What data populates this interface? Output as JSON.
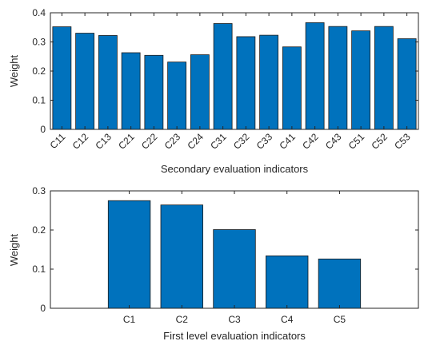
{
  "chart_data": [
    {
      "type": "bar",
      "title": "",
      "categories": [
        "C11",
        "C12",
        "C13",
        "C21",
        "C22",
        "C23",
        "C24",
        "C31",
        "C32",
        "C33",
        "C41",
        "C42",
        "C43",
        "C51",
        "C52",
        "C53"
      ],
      "values": [
        0.352,
        0.33,
        0.322,
        0.263,
        0.254,
        0.231,
        0.256,
        0.363,
        0.318,
        0.323,
        0.283,
        0.366,
        0.353,
        0.338,
        0.353,
        0.311
      ],
      "xlabel": "Secondary evaluation indicators",
      "ylabel": "Weight",
      "ylim": [
        0,
        0.4
      ],
      "yticks": [
        "0",
        "0.1",
        "0.2",
        "0.3",
        "0.4"
      ],
      "xtick_rotation_deg": -45,
      "bar_color": "#0072BD",
      "grid": false,
      "box": true
    },
    {
      "type": "bar",
      "title": "",
      "categories": [
        "C1",
        "C2",
        "C3",
        "C4",
        "C5"
      ],
      "values": [
        0.275,
        0.264,
        0.201,
        0.134,
        0.126
      ],
      "xlabel": "First level evaluation indicators",
      "ylabel": "Weight",
      "ylim": [
        0,
        0.3
      ],
      "yticks": [
        "0",
        "0.1",
        "0.2",
        "0.3"
      ],
      "xtick_rotation_deg": 0,
      "bar_color": "#0072BD",
      "grid": false,
      "box": true
    }
  ]
}
